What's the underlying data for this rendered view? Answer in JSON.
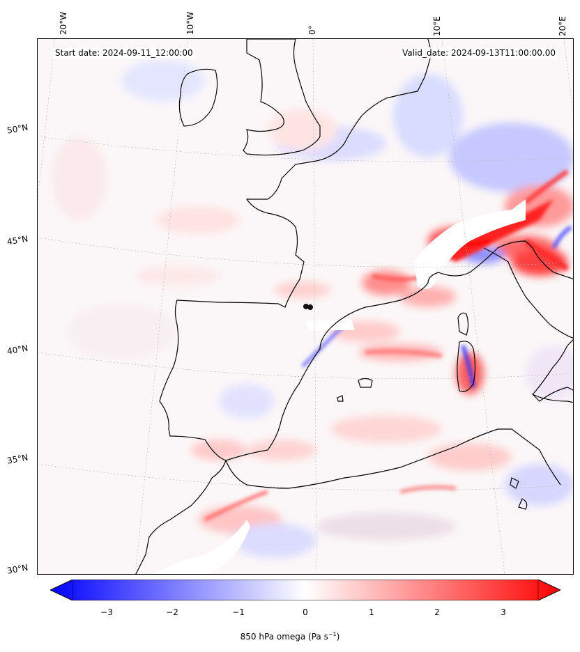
{
  "header": {
    "start_date": "Start date: 2024-09-11_12:00:00",
    "valid_date": "Valid_date: 2024-09-13T11:00:00.00"
  },
  "map": {
    "lon_labels": [
      "20°W",
      "10°W",
      "0°",
      "10°E",
      "20°E"
    ],
    "lat_labels": [
      "50°N",
      "45°N",
      "40°N",
      "35°N",
      "30°N"
    ],
    "colors": {
      "negative": "#0000ff",
      "positive": "#ff0000",
      "neutral": "#ffffff",
      "coast": "#000000"
    }
  },
  "colorbar": {
    "ticks": [
      "−3",
      "−2",
      "−1",
      "0",
      "1",
      "2",
      "3"
    ],
    "label_main": "850 hPa omega (Pa s",
    "label_sup": "−1",
    "label_close": ")",
    "vmin": -3.7,
    "vmax": 3.7
  }
}
